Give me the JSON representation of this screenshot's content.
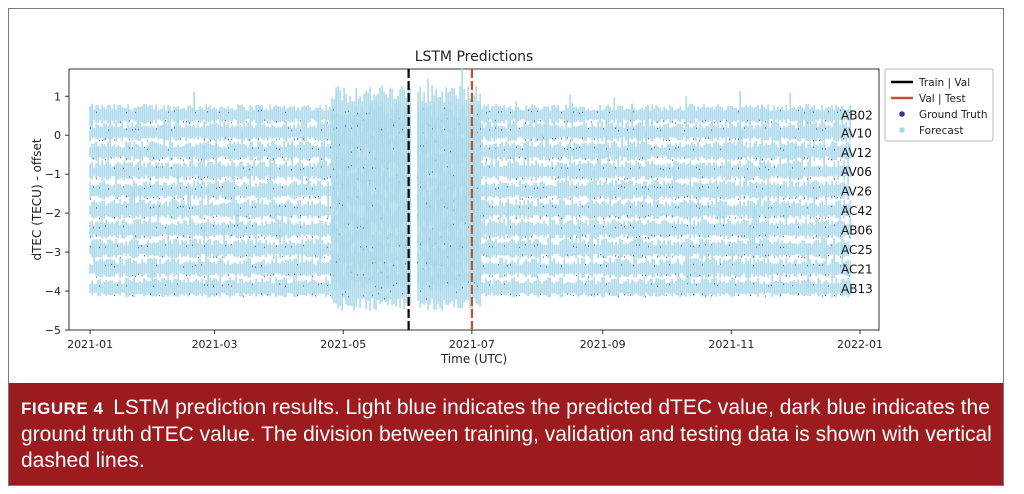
{
  "chart_data": {
    "type": "line",
    "title": "LSTM Predictions",
    "xlabel": "Time (UTC)",
    "ylabel": "dTEC (TECU) - offset",
    "xlim": [
      "2020-12-22",
      "2022-01-10"
    ],
    "ylim": [
      -5,
      1.7
    ],
    "x_ticks": [
      "2021-01",
      "2021-03",
      "2021-05",
      "2021-07",
      "2021-09",
      "2021-11",
      "2022-01"
    ],
    "y_ticks": [
      1,
      0,
      -1,
      -2,
      -3,
      -4,
      -5
    ],
    "data_start": "2021-01-01",
    "data_end": "2021-12-28",
    "series": [
      {
        "name": "Ground Truth",
        "color": "#2f3b8f",
        "marker": "dot"
      },
      {
        "name": "Forecast",
        "color": "#a8d8ea",
        "marker": "dot"
      }
    ],
    "stations": [
      {
        "label": "AB02",
        "offset": 0.5
      },
      {
        "label": "AV10",
        "offset": 0.05
      },
      {
        "label": "AV12",
        "offset": -0.45
      },
      {
        "label": "AV06",
        "offset": -0.95
      },
      {
        "label": "AV26",
        "offset": -1.45
      },
      {
        "label": "AC42",
        "offset": -1.95
      },
      {
        "label": "AB06",
        "offset": -2.45
      },
      {
        "label": "AC25",
        "offset": -2.95
      },
      {
        "label": "AC21",
        "offset": -3.45
      },
      {
        "label": "AB13",
        "offset": -3.95
      }
    ],
    "split_lines": [
      {
        "name": "Train | Val",
        "date": "2021-06-01",
        "color": "#000000",
        "style": "dashed"
      },
      {
        "name": "Val | Test",
        "date": "2021-07-01",
        "color": "#c8502a",
        "style": "dashed"
      }
    ],
    "legend_position": "right",
    "grid": false
  },
  "caption": {
    "label": "FIGURE 4",
    "text": "LSTM prediction results. Light blue indicates the predicted dTEC value, dark blue indicates the ground truth dTEC value. The division between training, validation and testing data is shown with vertical dashed lines."
  }
}
